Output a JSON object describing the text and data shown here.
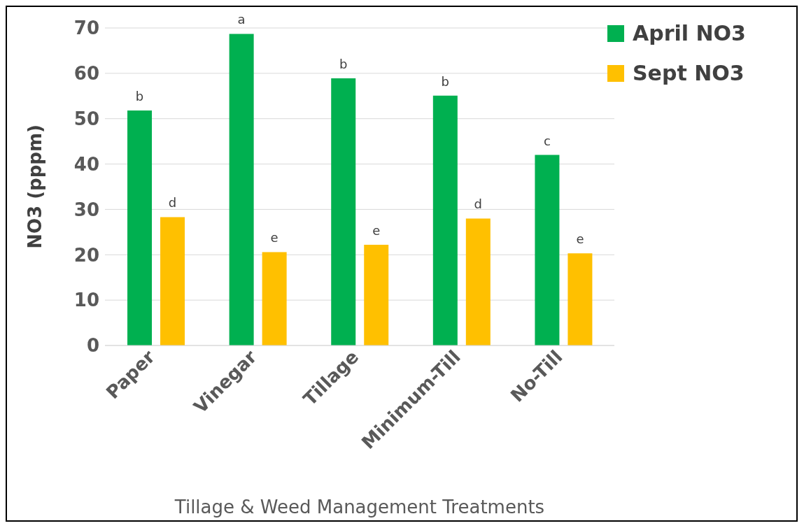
{
  "chart_data": {
    "type": "bar",
    "xlabel": "Tillage & Weed Management Treatments",
    "ylabel": "NO3 (pppm)",
    "categories": [
      "Paper",
      "Vinegar",
      "Tillage",
      "Minimum-Till",
      "No-Till"
    ],
    "series": [
      {
        "name": "April NO3",
        "color": "#00b050",
        "values": [
          51.8,
          68.7,
          58.9,
          55.1,
          42.0
        ]
      },
      {
        "name": "Sept NO3",
        "color": "#ffc000",
        "values": [
          28.3,
          20.6,
          22.2,
          28.0,
          20.3
        ]
      }
    ],
    "ylim": [
      0,
      70
    ],
    "yticks": [
      0,
      10,
      20,
      30,
      40,
      50,
      60,
      70
    ],
    "grid": "y",
    "legend": "top right",
    "annotations": [
      {
        "text": "b",
        "x": "Paper",
        "y": 51.8
      },
      {
        "text": "d",
        "x": "Paper",
        "y": 28.3
      },
      {
        "text": "a",
        "x": "Vinegar",
        "y": 68.7
      },
      {
        "text": "e",
        "x": "Vinegar",
        "y": 20.6
      },
      {
        "text": "b",
        "x": "Tillage",
        "y": 58.9
      },
      {
        "text": "e",
        "x": "Tillage",
        "y": 22.2
      },
      {
        "text": "b",
        "x": "Minimum-Till",
        "y": 55.1
      },
      {
        "text": "d",
        "x": "Minimum-Till",
        "y": 28.0
      },
      {
        "text": "c",
        "x": "No-Till",
        "y": 42.0
      },
      {
        "text": "e",
        "x": "No-Till",
        "y": 20.3
      }
    ]
  }
}
